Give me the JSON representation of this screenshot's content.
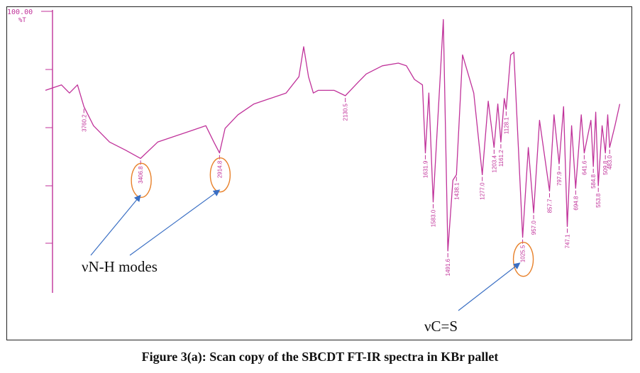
{
  "caption": "Figure 3(a): Scan copy of the SBCDT FT-IR spectra in KBr pallet",
  "colors": {
    "trace": "#c0329a",
    "highlight": "#e8812a",
    "arrow": "#3a6fc4",
    "text": "#111111"
  },
  "chart_data": {
    "type": "line",
    "title": "",
    "xlabel": "",
    "ylabel": "%T",
    "y_top_tick_label": "100.00",
    "ylim": [
      0,
      100
    ],
    "x_direction": "decreasing wavenumber",
    "xlim": [
      4000,
      400
    ],
    "grid": false,
    "series": [
      {
        "x": [
          4000,
          3900,
          3850,
          3800,
          3760,
          3700,
          3600,
          3500,
          3406.8,
          3300,
          3100,
          3000,
          2950,
          2914.8,
          2880,
          2800,
          2700,
          2600,
          2500,
          2420,
          2390,
          2360,
          2330,
          2300,
          2200,
          2130.5,
          2050,
          2000,
          1900,
          1800,
          1750,
          1700,
          1650,
          1631.9,
          1610,
          1583.0,
          1540,
          1520,
          1491.6,
          1460,
          1438.1,
          1400,
          1330,
          1277.0,
          1240,
          1203.4,
          1180,
          1161.2,
          1140,
          1128.1,
          1100,
          1080,
          1025.5,
          990,
          957.0,
          920,
          857.7,
          830,
          797.9,
          770,
          747.1,
          720,
          694.8,
          660,
          641.6,
          600,
          584.8,
          570,
          553.8,
          530,
          509.8,
          495,
          483.0,
          450,
          420
        ],
        "y": [
          71,
          73,
          70,
          73,
          65,
          58,
          52,
          49,
          46,
          52,
          56,
          58,
          52,
          48,
          57,
          62,
          66,
          68,
          70,
          76,
          87,
          76,
          70,
          71,
          71,
          69,
          74,
          77,
          80,
          81,
          80,
          75,
          73,
          48,
          70,
          30,
          75,
          97,
          12,
          38,
          40,
          84,
          70,
          40,
          67,
          50,
          66,
          52,
          68,
          64,
          84,
          85,
          17,
          50,
          26,
          60,
          34,
          62,
          44,
          65,
          21,
          58,
          35,
          62,
          48,
          60,
          43,
          63,
          36,
          58,
          48,
          62,
          50,
          58,
          66
        ]
      }
    ],
    "peak_labels": [
      {
        "x": 3760,
        "y": 65,
        "label": "3760.2"
      },
      {
        "x": 3406.8,
        "y": 46,
        "label": "3406.8"
      },
      {
        "x": 2914.8,
        "y": 48,
        "label": "2914.8"
      },
      {
        "x": 2130.5,
        "y": 69,
        "label": "2130.5"
      },
      {
        "x": 1631.9,
        "y": 48,
        "label": "1631.9"
      },
      {
        "x": 1583.0,
        "y": 30,
        "label": "1583.0"
      },
      {
        "x": 1491.6,
        "y": 12,
        "label": "1491.6"
      },
      {
        "x": 1438.1,
        "y": 40,
        "label": "1438.1"
      },
      {
        "x": 1277.0,
        "y": 40,
        "label": "1277.0"
      },
      {
        "x": 1203.4,
        "y": 50,
        "label": "1203.4"
      },
      {
        "x": 1161.2,
        "y": 52,
        "label": "1161.2"
      },
      {
        "x": 1128.1,
        "y": 64,
        "label": "1128.1"
      },
      {
        "x": 1025.5,
        "y": 17,
        "label": "1025.5"
      },
      {
        "x": 957.0,
        "y": 26,
        "label": "957.0"
      },
      {
        "x": 857.7,
        "y": 34,
        "label": "857.7"
      },
      {
        "x": 797.9,
        "y": 44,
        "label": "797.9"
      },
      {
        "x": 747.1,
        "y": 21,
        "label": "747.1"
      },
      {
        "x": 694.8,
        "y": 35,
        "label": "694.8"
      },
      {
        "x": 641.6,
        "y": 48,
        "label": "641.6"
      },
      {
        "x": 584.8,
        "y": 43,
        "label": "584.8"
      },
      {
        "x": 553.8,
        "y": 36,
        "label": "553.8"
      },
      {
        "x": 509.8,
        "y": 48,
        "label": "509.8"
      },
      {
        "x": 483.0,
        "y": 50,
        "label": "483.0"
      }
    ],
    "annotations": [
      {
        "text": "νN-H modes",
        "targets": [
          "3406.8",
          "2914.8"
        ]
      },
      {
        "text": "νC=S",
        "targets": [
          "1025.5"
        ]
      }
    ]
  }
}
